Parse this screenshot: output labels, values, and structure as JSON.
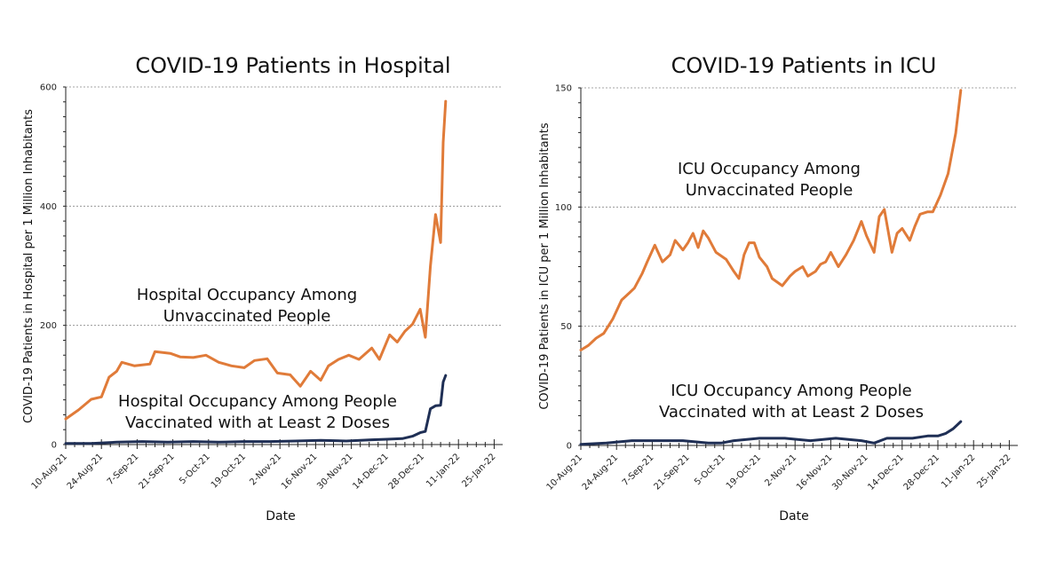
{
  "chart_data": [
    {
      "type": "line",
      "title": "COVID-19 Patients in Hospital",
      "xlabel": "Date",
      "ylabel": "COVID-19 Patients in Hospital per 1 Million Inhabitants",
      "ylim": [
        0,
        600
      ],
      "yticks": [
        0,
        200,
        400,
        600
      ],
      "xlim_days_from_start": [
        0,
        168
      ],
      "x_start_date": "10-Aug-21",
      "xticks": [
        "10-Aug-21",
        "24-Aug-21",
        "7-Sep-21",
        "21-Sep-21",
        "5-Oct-21",
        "19-Oct-21",
        "2-Nov-21",
        "16-Nov-21",
        "30-Nov-21",
        "14-Dec-21",
        "28-Dec-21",
        "11-Jan-22",
        "25-Jan-22"
      ],
      "grid": "horizontal-dashed",
      "annotations": [
        {
          "text_lines": [
            "Hospital Occupancy Among",
            "Unvaccinated People"
          ],
          "series": "unvaccinated"
        },
        {
          "text_lines": [
            "Hospital Occupancy  Among People",
            "Vaccinated with at Least 2 Doses"
          ],
          "series": "vaccinated"
        }
      ],
      "series": [
        {
          "name": "Unvaccinated",
          "color": "#E07B39",
          "x_days": [
            0,
            5,
            10,
            14,
            17,
            20,
            22,
            27,
            33,
            35,
            41,
            45,
            50,
            55,
            60,
            65,
            70,
            74,
            79,
            83,
            88,
            92,
            96,
            100,
            103,
            107,
            111,
            115,
            120,
            123,
            127,
            130,
            133,
            136,
            139,
            141,
            143,
            145,
            147,
            148,
            149
          ],
          "values": [
            43,
            58,
            76,
            80,
            113,
            123,
            138,
            132,
            135,
            156,
            153,
            147,
            146,
            150,
            138,
            132,
            129,
            141,
            144,
            120,
            117,
            98,
            123,
            108,
            132,
            143,
            150,
            143,
            162,
            143,
            184,
            172,
            190,
            202,
            227,
            180,
            299,
            386,
            339,
            507,
            576
          ]
        },
        {
          "name": "Vaccinated (2+ doses)",
          "color": "#1F2F55",
          "x_days": [
            0,
            10,
            20,
            30,
            40,
            50,
            60,
            70,
            80,
            90,
            100,
            110,
            120,
            126,
            132,
            136,
            139,
            141,
            143,
            145,
            147,
            148,
            149
          ],
          "values": [
            2,
            2,
            4,
            5,
            4,
            5,
            4,
            5,
            5,
            6,
            7,
            6,
            8,
            9,
            10,
            14,
            20,
            22,
            60,
            65,
            66,
            105,
            116
          ]
        }
      ]
    },
    {
      "type": "line",
      "title": "COVID-19 Patients in ICU",
      "xlabel": "Date",
      "ylabel": "COVID-19 Patients in ICU  per 1 Million Inhabitants",
      "ylim": [
        0,
        150
      ],
      "yticks": [
        0,
        50,
        100,
        150
      ],
      "xlim_days_from_start": [
        0,
        168
      ],
      "x_start_date": "10-Aug-21",
      "xticks": [
        "10-Aug-21",
        "24-Aug-21",
        "7-Sep-21",
        "21-Sep-21",
        "5-Oct-21",
        "19-Oct-21",
        "2-Nov-21",
        "16-Nov-21",
        "30-Nov-21",
        "14-Dec-21",
        "28-Dec-21",
        "11-Jan-22",
        "25-Jan-22"
      ],
      "grid": "horizontal-dashed",
      "annotations": [
        {
          "text_lines": [
            "ICU Occupancy Among",
            "Unvaccinated People"
          ],
          "series": "unvaccinated"
        },
        {
          "text_lines": [
            "ICU Occupancy Among People",
            "Vaccinated with at Least 2 Doses"
          ],
          "series": "vaccinated"
        }
      ],
      "series": [
        {
          "name": "Unvaccinated",
          "color": "#E07B39",
          "x_days": [
            0,
            3,
            6,
            9,
            12.5,
            16,
            19,
            21,
            24,
            26,
            29,
            32,
            35,
            37,
            40,
            42,
            44,
            46,
            48,
            50,
            53,
            57,
            60,
            62,
            64,
            66,
            68,
            70,
            73,
            75,
            79,
            82,
            84,
            87,
            89,
            92,
            94,
            96,
            98,
            101,
            104,
            107,
            110,
            112,
            115,
            117,
            119,
            122,
            124,
            126,
            129,
            131,
            133,
            136,
            138,
            141,
            144,
            147,
            149
          ],
          "values": [
            40,
            42,
            45,
            47,
            53,
            61,
            64,
            66,
            72,
            77,
            84,
            77,
            80,
            86,
            82,
            85,
            89,
            83,
            90,
            87,
            81,
            78,
            73,
            70,
            80,
            85,
            85,
            79,
            75,
            70,
            67,
            71,
            73,
            75,
            71,
            73,
            76,
            77,
            81,
            75,
            80,
            86,
            94,
            88,
            81,
            96,
            99,
            81,
            89,
            91,
            86,
            92,
            97,
            98,
            98,
            105,
            114,
            131,
            149
          ]
        },
        {
          "name": "Vaccinated (2+ doses)",
          "color": "#1F2F55",
          "x_days": [
            0,
            10,
            20,
            30,
            40,
            50,
            55,
            60,
            70,
            80,
            90,
            100,
            110,
            115,
            120,
            130,
            136,
            140,
            143,
            146,
            149
          ],
          "values": [
            0.5,
            1,
            2,
            2,
            2,
            1,
            1,
            2,
            3,
            3,
            2,
            3,
            2,
            1,
            3,
            3,
            4,
            4,
            5,
            7,
            10
          ]
        }
      ]
    }
  ]
}
